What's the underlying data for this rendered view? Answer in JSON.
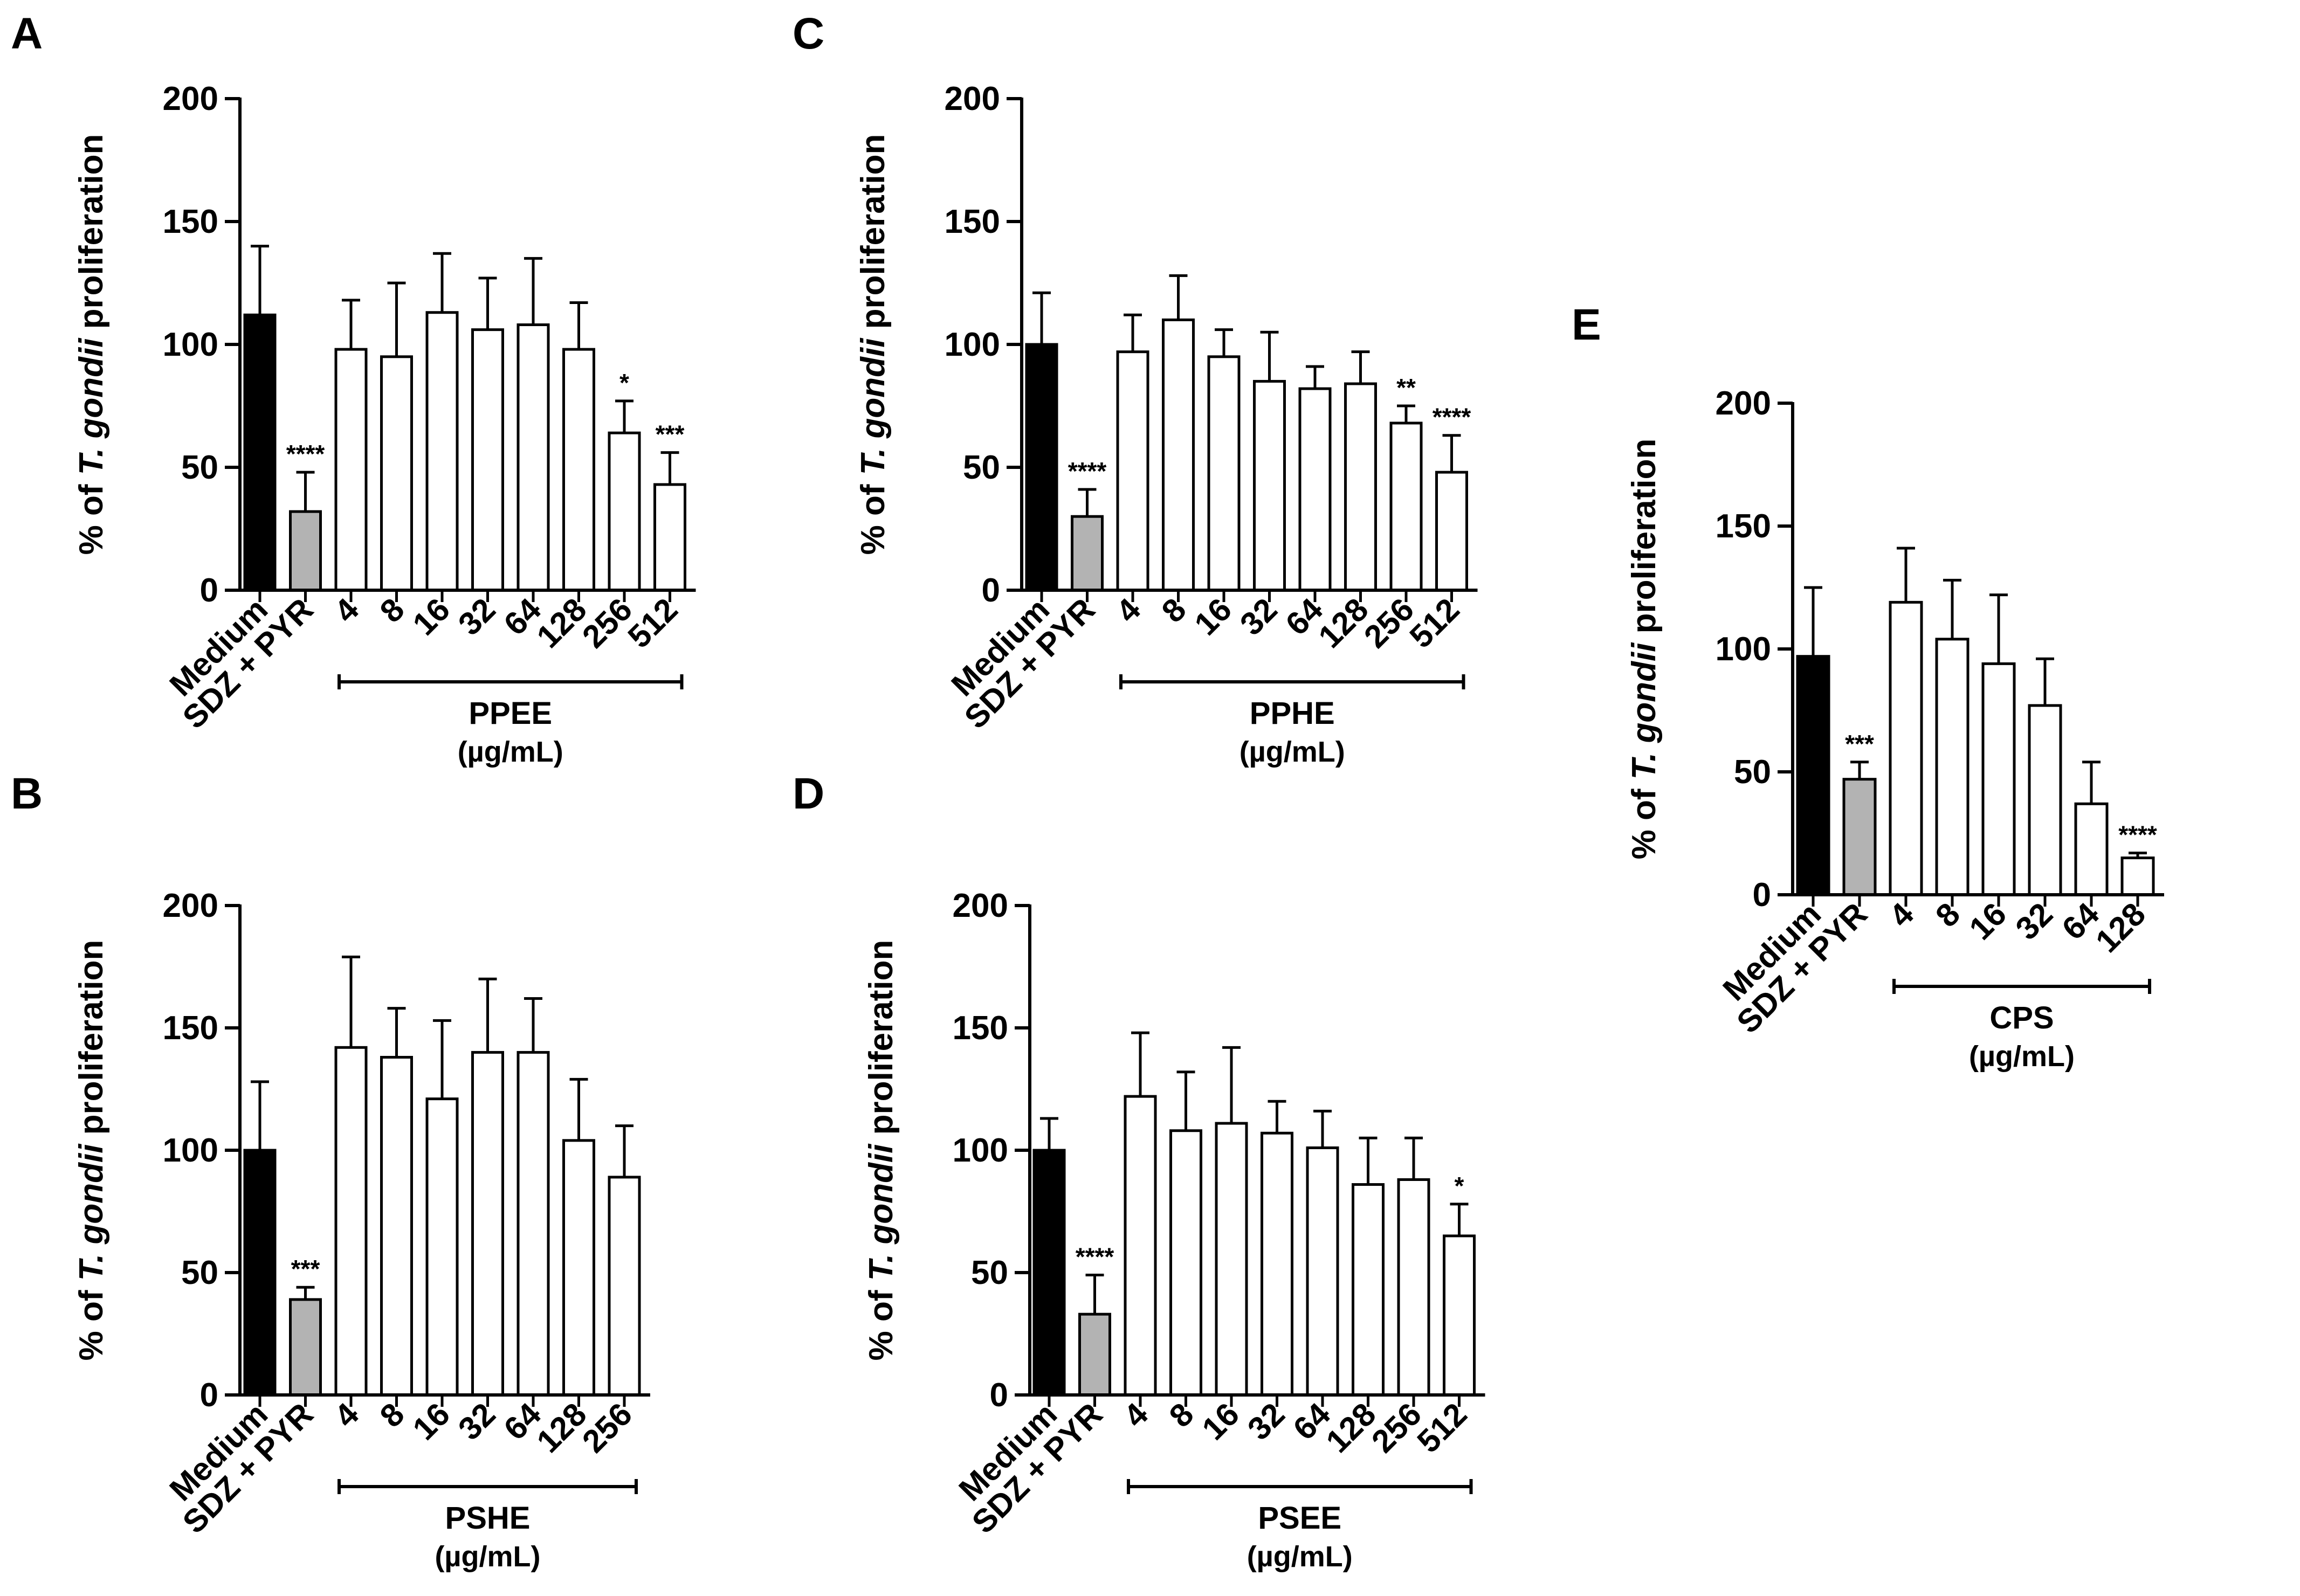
{
  "chart_data": [
    {
      "panel": "A",
      "type": "bar",
      "ylabel": {
        "pre": "% of ",
        "italic": "T. gondii",
        "post": " proliferation"
      },
      "ylim": [
        0,
        200
      ],
      "yticks": [
        "0",
        "50",
        "100",
        "150",
        "200"
      ],
      "categories": [
        "Medium",
        "SDZ + PYR",
        "4",
        "8",
        "16",
        "32",
        "64",
        "128",
        "256",
        "512"
      ],
      "values": [
        112,
        32,
        98,
        95,
        113,
        106,
        108,
        98,
        64,
        43
      ],
      "errors": [
        28,
        16,
        20,
        30,
        24,
        21,
        27,
        19,
        13,
        13
      ],
      "fills": [
        "#000000",
        "#b3b3b3",
        "#ffffff",
        "#ffffff",
        "#ffffff",
        "#ffffff",
        "#ffffff",
        "#ffffff",
        "#ffffff",
        "#ffffff"
      ],
      "significance": [
        "",
        "****",
        "",
        "",
        "",
        "",
        "",
        "",
        "*",
        "***"
      ],
      "group_label": "PPEE",
      "unit_label": "(µg/mL)"
    },
    {
      "panel": "B",
      "type": "bar",
      "ylabel": {
        "pre": "% of ",
        "italic": "T. gondii",
        "post": " proliferation"
      },
      "ylim": [
        0,
        200
      ],
      "yticks": [
        "0",
        "50",
        "100",
        "150",
        "200"
      ],
      "categories": [
        "Medium",
        "SDZ + PYR",
        "4",
        "8",
        "16",
        "32",
        "64",
        "128",
        "256"
      ],
      "values": [
        100,
        39,
        142,
        138,
        121,
        140,
        140,
        104,
        89
      ],
      "errors": [
        28,
        5,
        37,
        20,
        32,
        30,
        22,
        25,
        21
      ],
      "fills": [
        "#000000",
        "#b3b3b3",
        "#ffffff",
        "#ffffff",
        "#ffffff",
        "#ffffff",
        "#ffffff",
        "#ffffff",
        "#ffffff"
      ],
      "significance": [
        "",
        "***",
        "",
        "",
        "",
        "",
        "",
        "",
        ""
      ],
      "group_label": "PSHE",
      "unit_label": "(µg/mL)"
    },
    {
      "panel": "C",
      "type": "bar",
      "ylabel": {
        "pre": "% of ",
        "italic": "T. gondii",
        "post": " proliferation"
      },
      "ylim": [
        0,
        200
      ],
      "yticks": [
        "0",
        "50",
        "100",
        "150",
        "200"
      ],
      "categories": [
        "Medium",
        "SDZ + PYR",
        "4",
        "8",
        "16",
        "32",
        "64",
        "128",
        "256",
        "512"
      ],
      "values": [
        100,
        30,
        97,
        110,
        95,
        85,
        82,
        84,
        68,
        48
      ],
      "errors": [
        21,
        11,
        15,
        18,
        11,
        20,
        9,
        13,
        7,
        15
      ],
      "fills": [
        "#000000",
        "#b3b3b3",
        "#ffffff",
        "#ffffff",
        "#ffffff",
        "#ffffff",
        "#ffffff",
        "#ffffff",
        "#ffffff",
        "#ffffff"
      ],
      "significance": [
        "",
        "****",
        "",
        "",
        "",
        "",
        "",
        "",
        "**",
        "****"
      ],
      "group_label": "PPHE",
      "unit_label": "(µg/mL)"
    },
    {
      "panel": "D",
      "type": "bar",
      "ylabel": {
        "pre": "% of ",
        "italic": "T. gondii",
        "post": " proliferation"
      },
      "ylim": [
        0,
        200
      ],
      "yticks": [
        "0",
        "50",
        "100",
        "150",
        "200"
      ],
      "categories": [
        "Medium",
        "SDZ + PYR",
        "4",
        "8",
        "16",
        "32",
        "64",
        "128",
        "256",
        "512"
      ],
      "values": [
        100,
        33,
        122,
        108,
        111,
        107,
        101,
        86,
        88,
        65
      ],
      "errors": [
        13,
        16,
        26,
        24,
        31,
        13,
        15,
        19,
        17,
        13
      ],
      "fills": [
        "#000000",
        "#b3b3b3",
        "#ffffff",
        "#ffffff",
        "#ffffff",
        "#ffffff",
        "#ffffff",
        "#ffffff",
        "#ffffff",
        "#ffffff"
      ],
      "significance": [
        "",
        "****",
        "",
        "",
        "",
        "",
        "",
        "",
        "",
        "*"
      ],
      "group_label": "PSEE",
      "unit_label": "(µg/mL)"
    },
    {
      "panel": "E",
      "type": "bar",
      "ylabel": {
        "pre": "% of ",
        "italic": "T. gondii",
        "post": " proliferation"
      },
      "ylim": [
        0,
        200
      ],
      "yticks": [
        "0",
        "50",
        "100",
        "150",
        "200"
      ],
      "categories": [
        "Medium",
        "SDZ + PYR",
        "4",
        "8",
        "16",
        "32",
        "64",
        "128"
      ],
      "values": [
        97,
        47,
        119,
        104,
        94,
        77,
        37,
        15
      ],
      "errors": [
        28,
        7,
        22,
        24,
        28,
        19,
        17,
        2
      ],
      "fills": [
        "#000000",
        "#b3b3b3",
        "#ffffff",
        "#ffffff",
        "#ffffff",
        "#ffffff",
        "#ffffff",
        "#ffffff"
      ],
      "significance": [
        "",
        "***",
        "",
        "",
        "",
        "",
        "",
        "****"
      ],
      "group_label": "CPS",
      "unit_label": "(µg/mL)"
    }
  ]
}
